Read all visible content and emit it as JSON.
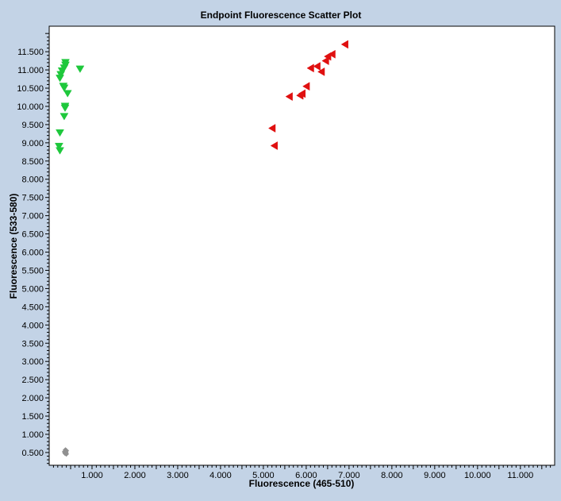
{
  "chart_data": {
    "type": "scatter",
    "title": "Endpoint Fluorescence Scatter Plot",
    "xlabel": "Fluorescence (465-510)",
    "ylabel": "Fluorescence (533-580)",
    "xlim": [
      0,
      11.8
    ],
    "ylim": [
      0.15,
      12.2
    ],
    "x_ticks": [
      "1.000",
      "2.000",
      "3.000",
      "4.000",
      "5.000",
      "6.000",
      "7.000",
      "8.000",
      "9.000",
      "10.000",
      "11.000"
    ],
    "y_ticks": [
      "0.500",
      "1.000",
      "1.500",
      "2.000",
      "2.500",
      "3.000",
      "3.500",
      "4.000",
      "4.500",
      "5.000",
      "5.500",
      "6.000",
      "6.500",
      "7.000",
      "7.500",
      "8.000",
      "8.500",
      "9.000",
      "9.500",
      "10.000",
      "10.500",
      "11.000",
      "11.500"
    ],
    "grid": false,
    "legend": false,
    "series": [
      {
        "marker": "triangle-down",
        "color": "#1ec83c",
        "points": [
          [
            0.38,
            11.2
          ],
          [
            0.38,
            11.13
          ],
          [
            0.35,
            11.05
          ],
          [
            0.3,
            10.97
          ],
          [
            0.72,
            11.02
          ],
          [
            0.27,
            10.87
          ],
          [
            0.25,
            10.77
          ],
          [
            0.33,
            10.55
          ],
          [
            0.35,
            10.5
          ],
          [
            0.43,
            10.35
          ],
          [
            0.37,
            10.0
          ],
          [
            0.37,
            9.95
          ],
          [
            0.35,
            9.72
          ],
          [
            0.25,
            9.27
          ],
          [
            0.23,
            8.9
          ],
          [
            0.25,
            8.78
          ]
        ]
      },
      {
        "marker": "triangle-left",
        "color": "#e01010",
        "points": [
          [
            6.9,
            11.7
          ],
          [
            6.6,
            11.43
          ],
          [
            6.5,
            11.37
          ],
          [
            6.45,
            11.25
          ],
          [
            6.25,
            11.1
          ],
          [
            6.1,
            11.05
          ],
          [
            6.35,
            10.95
          ],
          [
            6.0,
            10.55
          ],
          [
            5.9,
            10.35
          ],
          [
            5.85,
            10.3
          ],
          [
            5.6,
            10.27
          ],
          [
            5.2,
            9.4
          ],
          [
            5.25,
            8.92
          ]
        ]
      },
      {
        "marker": "diamond",
        "color": "#909090",
        "points": [
          [
            0.38,
            0.57
          ],
          [
            0.4,
            0.55
          ],
          [
            0.36,
            0.52
          ],
          [
            0.39,
            0.5
          ],
          [
            0.37,
            0.48
          ],
          [
            0.4,
            0.46
          ]
        ]
      }
    ]
  }
}
